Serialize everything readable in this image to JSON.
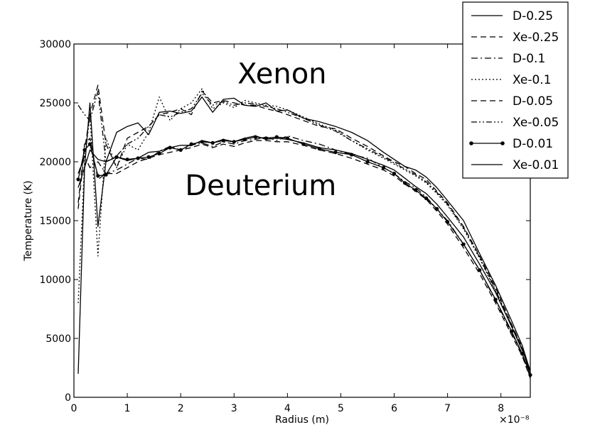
{
  "chart_data": {
    "type": "line",
    "title": "",
    "xlabel": "Radius (m)",
    "ylabel": "Temperature (K)",
    "x_scale_label": "×10⁻⁸",
    "xlim": [
      0,
      8.55
    ],
    "ylim": [
      0,
      30000
    ],
    "xticks": [
      0,
      1,
      2,
      3,
      4,
      5,
      6,
      7,
      8
    ],
    "yticks": [
      0,
      5000,
      10000,
      15000,
      20000,
      25000,
      30000
    ],
    "grid": false,
    "legend_position": "top-right outside",
    "annotations": [
      {
        "text": "Xenon",
        "x": 3.9,
        "y": 27500
      },
      {
        "text": "Deuterium",
        "x": 3.5,
        "y": 18000
      }
    ],
    "series": [
      {
        "name": "D-0.25",
        "style": "solid",
        "marker": false,
        "x": [
          0.08,
          0.2,
          0.3,
          0.45,
          0.6,
          0.8,
          1.0,
          1.2,
          1.4,
          1.6,
          1.8,
          2.0,
          2.2,
          2.4,
          2.6,
          2.8,
          3.0,
          3.2,
          3.4,
          3.6,
          3.8,
          4.0,
          4.3,
          4.6,
          4.9,
          5.2,
          5.5,
          5.8,
          6.0,
          6.2,
          6.4,
          6.6,
          6.8,
          7.0,
          7.3,
          7.6,
          7.9,
          8.2,
          8.4,
          8.55
        ],
        "y": [
          17800,
          19500,
          21000,
          20200,
          20000,
          20400,
          20100,
          20300,
          20800,
          20900,
          21200,
          21400,
          21400,
          21800,
          21600,
          21900,
          21700,
          22000,
          22200,
          21900,
          22000,
          21900,
          21600,
          21200,
          21000,
          20700,
          20200,
          19700,
          19300,
          18600,
          17900,
          17300,
          16400,
          15300,
          13600,
          11300,
          8900,
          6000,
          4000,
          2300
        ]
      },
      {
        "name": "Xe-0.25",
        "style": "dashed",
        "marker": false,
        "x": [
          0.08,
          0.2,
          0.3,
          0.45,
          0.6,
          0.8,
          1.0,
          1.2,
          1.4,
          1.6,
          1.8,
          2.0,
          2.2,
          2.4,
          2.6,
          2.8,
          3.0,
          3.2,
          3.4,
          3.6,
          3.8,
          4.0,
          4.3,
          4.6,
          4.9,
          5.2,
          5.5,
          5.8,
          6.0,
          6.2,
          6.4,
          6.6,
          6.8,
          7.0,
          7.3,
          7.6,
          7.9,
          8.2,
          8.4,
          8.55
        ],
        "y": [
          16000,
          21000,
          24000,
          26500,
          21500,
          19500,
          22000,
          22500,
          23000,
          24000,
          24200,
          24500,
          24000,
          26000,
          25000,
          25200,
          25000,
          24800,
          24800,
          24500,
          24300,
          24000,
          23500,
          23000,
          22800,
          22000,
          21300,
          20500,
          20000,
          19600,
          19000,
          18500,
          17500,
          16500,
          14500,
          12000,
          9300,
          6200,
          4200,
          2000
        ]
      },
      {
        "name": "D-0.1",
        "style": "dashdot",
        "marker": false,
        "x": [
          0.08,
          0.2,
          0.3,
          0.45,
          0.6,
          0.8,
          1.0,
          1.2,
          1.4,
          1.6,
          1.8,
          2.0,
          2.2,
          2.4,
          2.6,
          2.8,
          3.0,
          3.2,
          3.4,
          3.6,
          3.8,
          4.0,
          4.3,
          4.6,
          4.9,
          5.2,
          5.5,
          5.8,
          6.0,
          6.2,
          6.4,
          6.6,
          6.8,
          7.0,
          7.3,
          7.6,
          7.9,
          8.2,
          8.4,
          8.55
        ],
        "y": [
          19000,
          20500,
          19500,
          20000,
          19000,
          19300,
          19800,
          20300,
          20200,
          20900,
          21300,
          21000,
          21400,
          21600,
          21300,
          21700,
          21500,
          21800,
          21900,
          22100,
          21800,
          22200,
          21800,
          21500,
          21000,
          20600,
          20300,
          19500,
          19000,
          18300,
          17800,
          17000,
          16000,
          15000,
          13000,
          10800,
          8200,
          5500,
          3600,
          1700
        ]
      },
      {
        "name": "Xe-0.1",
        "style": "dotted",
        "marker": false,
        "x": [
          0.08,
          0.2,
          0.3,
          0.45,
          0.6,
          0.8,
          1.0,
          1.2,
          1.4,
          1.6,
          1.8,
          2.0,
          2.2,
          2.4,
          2.6,
          2.8,
          3.0,
          3.2,
          3.4,
          3.6,
          3.8,
          4.0,
          4.3,
          4.6,
          4.9,
          5.2,
          5.5,
          5.8,
          6.0,
          6.2,
          6.4,
          6.6,
          6.8,
          7.0,
          7.3,
          7.6,
          7.9,
          8.2,
          8.4,
          8.55
        ],
        "y": [
          8000,
          20000,
          24000,
          12000,
          22000,
          19500,
          21500,
          21000,
          22500,
          25500,
          23500,
          24500,
          25000,
          26200,
          24500,
          25000,
          24600,
          25200,
          25000,
          24800,
          24700,
          24400,
          23800,
          23200,
          22700,
          21800,
          21000,
          20300,
          19800,
          19300,
          18800,
          18200,
          17300,
          16300,
          14300,
          11800,
          9000,
          6000,
          4100,
          2000
        ]
      },
      {
        "name": "D-0.05",
        "style": "dashed",
        "marker": false,
        "x": [
          0.08,
          0.2,
          0.3,
          0.45,
          0.6,
          0.8,
          1.0,
          1.2,
          1.4,
          1.6,
          1.8,
          2.0,
          2.2,
          2.4,
          2.6,
          2.8,
          3.0,
          3.2,
          3.4,
          3.6,
          3.8,
          4.0,
          4.3,
          4.6,
          4.9,
          5.2,
          5.5,
          5.8,
          6.0,
          6.2,
          6.4,
          6.6,
          6.8,
          7.0,
          7.3,
          7.6,
          7.9,
          8.2,
          8.4,
          8.55
        ],
        "y": [
          16500,
          21500,
          22000,
          18500,
          19000,
          19000,
          19500,
          20000,
          20300,
          20600,
          20800,
          21000,
          21200,
          21500,
          21200,
          21500,
          21300,
          21600,
          21800,
          21800,
          21700,
          21700,
          21400,
          21000,
          20700,
          20300,
          19800,
          19300,
          18800,
          18100,
          17500,
          16800,
          15800,
          14700,
          12700,
          10500,
          8000,
          5300,
          3500,
          1600
        ]
      },
      {
        "name": "Xe-0.05",
        "style": "dashdotdot",
        "marker": false,
        "x": [
          0.08,
          0.2,
          0.3,
          0.45,
          0.6,
          0.8,
          1.0,
          1.2,
          1.4,
          1.6,
          1.8,
          2.0,
          2.2,
          2.4,
          2.6,
          2.8,
          3.0,
          3.2,
          3.4,
          3.6,
          3.8,
          4.0,
          4.3,
          4.6,
          4.9,
          5.2,
          5.5,
          5.8,
          6.0,
          6.2,
          6.4,
          6.6,
          6.8,
          7.0,
          7.3,
          7.6,
          7.9,
          8.2,
          8.4,
          8.55
        ],
        "y": [
          24800,
          24000,
          23500,
          26000,
          20000,
          20500,
          21500,
          22000,
          23000,
          24000,
          23800,
          24200,
          24500,
          25800,
          24800,
          25100,
          24800,
          25000,
          24900,
          24700,
          24500,
          24200,
          23700,
          23100,
          22600,
          21800,
          21100,
          20400,
          19900,
          19400,
          18900,
          18300,
          17400,
          16400,
          14400,
          11900,
          9100,
          6100,
          4100,
          2000
        ]
      },
      {
        "name": "D-0.01",
        "style": "solid",
        "marker": true,
        "x": [
          0.08,
          0.2,
          0.3,
          0.45,
          0.6,
          0.8,
          1.0,
          1.2,
          1.4,
          1.6,
          1.8,
          2.0,
          2.2,
          2.4,
          2.6,
          2.8,
          3.0,
          3.2,
          3.4,
          3.6,
          3.8,
          4.0,
          4.3,
          4.6,
          4.9,
          5.2,
          5.5,
          5.8,
          6.0,
          6.2,
          6.4,
          6.6,
          6.8,
          7.0,
          7.3,
          7.6,
          7.9,
          8.2,
          8.4,
          8.55
        ],
        "y": [
          18500,
          21000,
          21500,
          18800,
          18900,
          20400,
          20200,
          20300,
          20400,
          20700,
          21200,
          21000,
          21500,
          21700,
          21600,
          21800,
          21700,
          21900,
          22100,
          22000,
          22100,
          22000,
          21500,
          21100,
          20800,
          20600,
          20000,
          19500,
          19000,
          18200,
          17600,
          16900,
          16000,
          14900,
          13000,
          10800,
          8300,
          5600,
          3700,
          1900
        ]
      },
      {
        "name": "Xe-0.01",
        "style": "solid",
        "marker": false,
        "x": [
          0.08,
          0.2,
          0.3,
          0.45,
          0.6,
          0.8,
          1.0,
          1.2,
          1.4,
          1.6,
          1.8,
          2.0,
          2.2,
          2.4,
          2.6,
          2.8,
          3.0,
          3.2,
          3.4,
          3.6,
          3.8,
          4.0,
          4.3,
          4.6,
          4.9,
          5.2,
          5.5,
          5.8,
          6.0,
          6.2,
          6.4,
          6.6,
          6.8,
          7.0,
          7.3,
          7.6,
          7.9,
          8.2,
          8.4,
          8.55
        ],
        "y": [
          2000,
          19500,
          25000,
          14500,
          20000,
          22500,
          23000,
          23300,
          22300,
          24200,
          24300,
          24100,
          24300,
          25500,
          24200,
          25300,
          25400,
          24800,
          24700,
          25000,
          24300,
          24400,
          23700,
          23400,
          23000,
          22500,
          21800,
          20800,
          20200,
          19600,
          19300,
          18700,
          17800,
          16700,
          15000,
          12200,
          9500,
          6500,
          4400,
          2200
        ]
      }
    ]
  }
}
